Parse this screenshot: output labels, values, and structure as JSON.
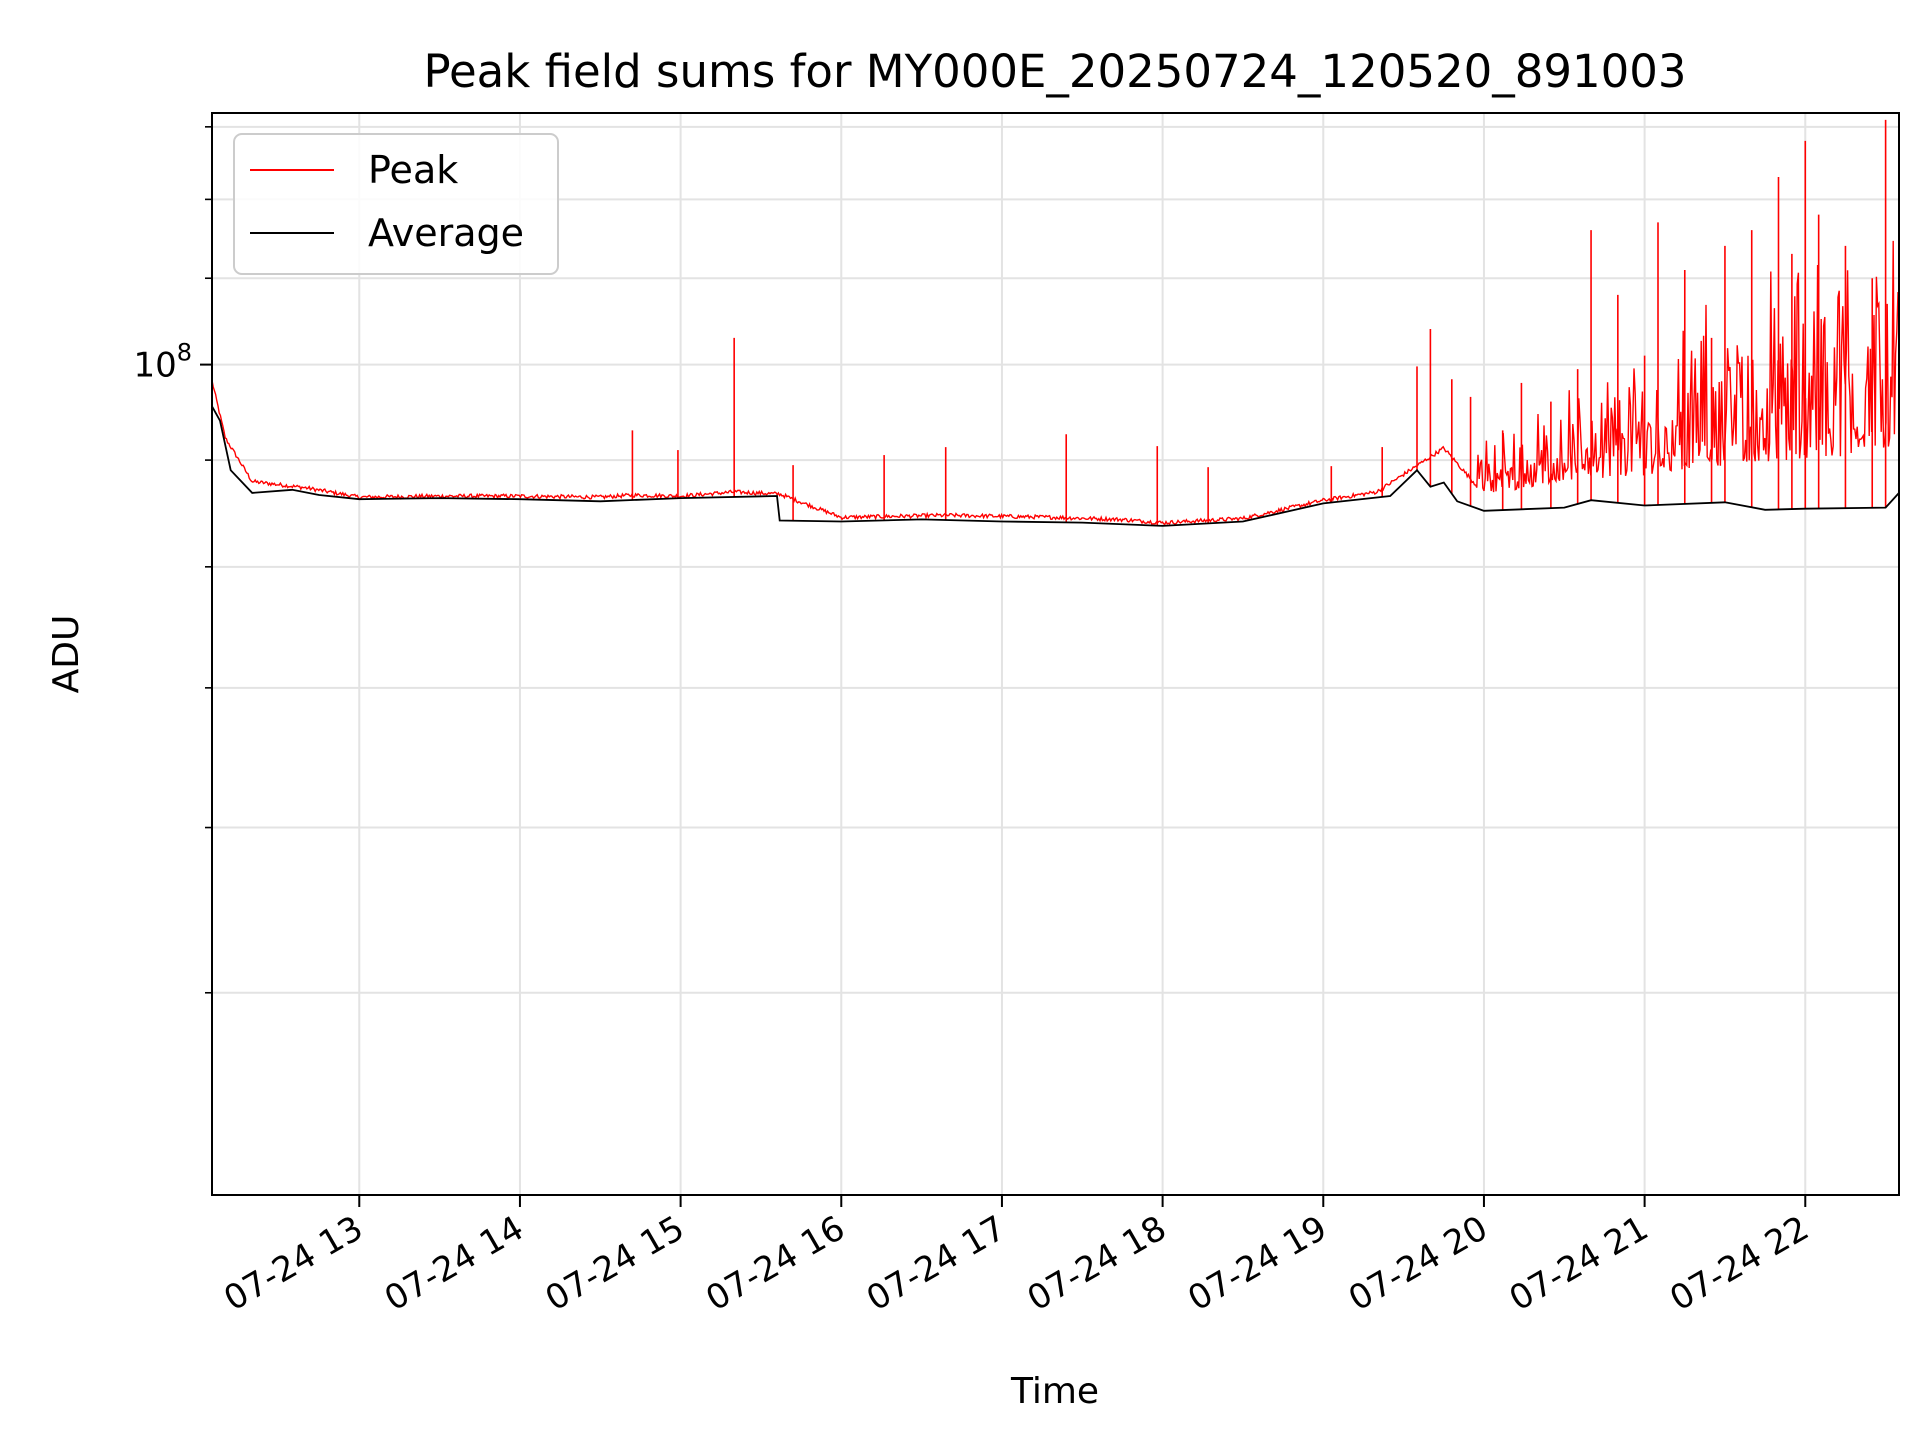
{
  "chart_data": {
    "type": "line",
    "title": "Peak field sums for MY000E_20250724_120520_891003",
    "xlabel": "Time",
    "ylabel": "ADU",
    "x_scale": "time",
    "y_scale": "log",
    "xlim": [
      "2025-07-24 12:05",
      "2025-07-24 22:35"
    ],
    "ylim": [
      40000000,
      132000000
    ],
    "grid": true,
    "legend_position": "upper-left",
    "x_ticks": [
      "2025-07-24 13:00",
      "2025-07-24 14:00",
      "2025-07-24 15:00",
      "2025-07-24 16:00",
      "2025-07-24 17:00",
      "2025-07-24 18:00",
      "2025-07-24 19:00",
      "2025-07-24 20:00",
      "2025-07-24 21:00",
      "2025-07-24 22:00"
    ],
    "x_tick_labels": [
      "07-24 13",
      "07-24 14",
      "07-24 15",
      "07-24 16",
      "07-24 17",
      "07-24 18",
      "07-24 19",
      "07-24 20",
      "07-24 21",
      "07-24 22"
    ],
    "y_major_ticks": [
      100000000
    ],
    "y_major_tick_labels": [
      "10",
      "8"
    ],
    "y_minor_ticks": [
      50000000,
      60000000,
      70000000,
      80000000,
      90000000,
      110000000,
      120000000,
      130000000
    ],
    "series": [
      {
        "name": "Peak",
        "color": "#ff0000",
        "x": [
          "2025-07-24 12:05",
          "2025-07-24 12:10",
          "2025-07-24 12:20",
          "2025-07-24 12:40",
          "2025-07-24 13:00",
          "2025-07-24 13:30",
          "2025-07-24 14:00",
          "2025-07-24 14:30",
          "2025-07-24 14:42",
          "2025-07-24 15:00",
          "2025-07-24 15:20",
          "2025-07-24 15:37",
          "2025-07-24 16:00",
          "2025-07-24 16:40",
          "2025-07-24 17:20",
          "2025-07-24 17:45",
          "2025-07-24 18:00",
          "2025-07-24 18:30",
          "2025-07-24 19:00",
          "2025-07-24 19:20",
          "2025-07-24 19:45",
          "2025-07-24 20:00",
          "2025-07-24 20:30",
          "2025-07-24 21:00",
          "2025-07-24 21:30",
          "2025-07-24 22:00",
          "2025-07-24 22:35"
        ],
        "y": [
          98000000,
          92000000,
          87700000,
          87100000,
          86200000,
          86300000,
          86300000,
          86200000,
          86400000,
          86300000,
          86700000,
          86500000,
          84300000,
          84500000,
          84300000,
          84100000,
          83800000,
          84200000,
          85900000,
          86700000,
          91000000,
          86500000,
          88000000,
          88500000,
          89500000,
          90000000,
          91000000
        ],
        "spikes": [
          {
            "x": "2025-07-24 14:42",
            "y": 93000000
          },
          {
            "x": "2025-07-24 14:59",
            "y": 91000000
          },
          {
            "x": "2025-07-24 15:20",
            "y": 103000000
          },
          {
            "x": "2025-07-24 15:42",
            "y": 89500000
          },
          {
            "x": "2025-07-24 16:16",
            "y": 90500000
          },
          {
            "x": "2025-07-24 16:39",
            "y": 91300000
          },
          {
            "x": "2025-07-24 17:24",
            "y": 92600000
          },
          {
            "x": "2025-07-24 17:58",
            "y": 91400000
          },
          {
            "x": "2025-07-24 18:17",
            "y": 89300000
          },
          {
            "x": "2025-07-24 19:03",
            "y": 89400000
          },
          {
            "x": "2025-07-24 19:22",
            "y": 91300000
          },
          {
            "x": "2025-07-24 19:35",
            "y": 99800000
          },
          {
            "x": "2025-07-24 19:40",
            "y": 104000000
          },
          {
            "x": "2025-07-24 19:48",
            "y": 98400000
          },
          {
            "x": "2025-07-24 19:55",
            "y": 96500000
          },
          {
            "x": "2025-07-24 20:07",
            "y": 93000000
          },
          {
            "x": "2025-07-24 20:14",
            "y": 98000000
          },
          {
            "x": "2025-07-24 20:25",
            "y": 96000000
          },
          {
            "x": "2025-07-24 20:35",
            "y": 99500000
          },
          {
            "x": "2025-07-24 20:40",
            "y": 116000000
          },
          {
            "x": "2025-07-24 20:50",
            "y": 108000000
          },
          {
            "x": "2025-07-24 21:00",
            "y": 101000000
          },
          {
            "x": "2025-07-24 21:05",
            "y": 117000000
          },
          {
            "x": "2025-07-24 21:15",
            "y": 111000000
          },
          {
            "x": "2025-07-24 21:25",
            "y": 103000000
          },
          {
            "x": "2025-07-24 21:30",
            "y": 114000000
          },
          {
            "x": "2025-07-24 21:40",
            "y": 116000000
          },
          {
            "x": "2025-07-24 21:50",
            "y": 123000000
          },
          {
            "x": "2025-07-24 21:55",
            "y": 113000000
          },
          {
            "x": "2025-07-24 22:00",
            "y": 128000000
          },
          {
            "x": "2025-07-24 22:05",
            "y": 118000000
          },
          {
            "x": "2025-07-24 22:15",
            "y": 114000000
          },
          {
            "x": "2025-07-24 22:25",
            "y": 110000000
          },
          {
            "x": "2025-07-24 22:30",
            "y": 131000000
          }
        ]
      },
      {
        "name": "Average",
        "color": "#000000",
        "x": [
          "2025-07-24 12:05",
          "2025-07-24 12:08",
          "2025-07-24 12:12",
          "2025-07-24 12:20",
          "2025-07-24 12:35",
          "2025-07-24 12:45",
          "2025-07-24 13:00",
          "2025-07-24 13:30",
          "2025-07-24 14:00",
          "2025-07-24 14:30",
          "2025-07-24 15:00",
          "2025-07-24 15:36",
          "2025-07-24 15:37",
          "2025-07-24 16:00",
          "2025-07-24 16:30",
          "2025-07-24 17:00",
          "2025-07-24 17:30",
          "2025-07-24 18:00",
          "2025-07-24 18:30",
          "2025-07-24 19:00",
          "2025-07-24 19:25",
          "2025-07-24 19:35",
          "2025-07-24 19:40",
          "2025-07-24 19:45",
          "2025-07-24 19:50",
          "2025-07-24 20:00",
          "2025-07-24 20:30",
          "2025-07-24 20:40",
          "2025-07-24 21:00",
          "2025-07-24 21:30",
          "2025-07-24 21:45",
          "2025-07-24 22:00",
          "2025-07-24 22:30",
          "2025-07-24 22:35"
        ],
        "y": [
          95500000,
          94000000,
          89000000,
          86800000,
          87100000,
          86600000,
          86200000,
          86300000,
          86200000,
          86000000,
          86300000,
          86500000,
          84200000,
          84100000,
          84300000,
          84100000,
          84000000,
          83700000,
          84100000,
          85800000,
          86500000,
          89000000,
          87400000,
          87800000,
          86000000,
          85100000,
          85400000,
          86100000,
          85600000,
          85900000,
          85200000,
          85300000,
          85400000,
          86800000
        ]
      }
    ]
  }
}
